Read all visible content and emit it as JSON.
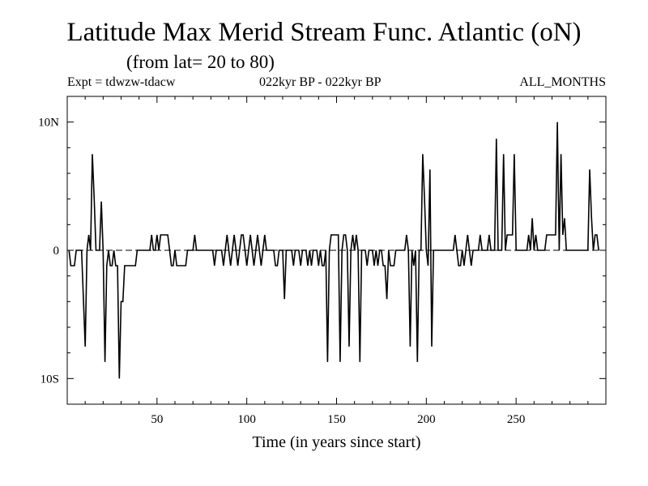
{
  "chart_data": {
    "type": "line",
    "title": "Latitude Max Merid Stream Func. Atlantic (oN)",
    "subtitle": "(from lat= 20 to 80)",
    "experiment": "Expt = tdwzw-tdacw",
    "period": "022kyr BP - 022kyr BP",
    "months": "ALL_MONTHS",
    "xlabel": "Time (in years since start)",
    "ylabel": "",
    "xlim": [
      0,
      300
    ],
    "ylim": [
      -12,
      12
    ],
    "x_ticks": [
      50,
      100,
      150,
      200,
      250
    ],
    "y_ticks": [
      {
        "value": 10,
        "label": "10N"
      },
      {
        "value": 0,
        "label": "0"
      },
      {
        "value": -10,
        "label": "10S"
      }
    ],
    "zero_line": "dashed",
    "series": [
      {
        "color": "#000000",
        "points": [
          [
            1,
            0
          ],
          [
            2,
            -1.2
          ],
          [
            3,
            -1.2
          ],
          [
            4,
            -1.2
          ],
          [
            5,
            0
          ],
          [
            6,
            0
          ],
          [
            8,
            0
          ],
          [
            10,
            -7.5
          ],
          [
            11,
            0
          ],
          [
            12,
            1.2
          ],
          [
            13,
            0
          ],
          [
            14,
            7.5
          ],
          [
            15,
            4
          ],
          [
            16,
            0
          ],
          [
            17,
            0
          ],
          [
            18,
            0
          ],
          [
            19,
            3.8
          ],
          [
            20,
            0
          ],
          [
            21,
            -8.7
          ],
          [
            22,
            -1.2
          ],
          [
            23,
            0
          ],
          [
            24,
            -1.2
          ],
          [
            25,
            -1.2
          ],
          [
            26,
            0
          ],
          [
            27,
            -1.2
          ],
          [
            28,
            -1.2
          ],
          [
            29,
            -10
          ],
          [
            30,
            -4
          ],
          [
            31,
            -4
          ],
          [
            32,
            -1.2
          ],
          [
            33,
            -1.2
          ],
          [
            34,
            -1.2
          ],
          [
            38,
            -1.2
          ],
          [
            39,
            0
          ],
          [
            45,
            0
          ],
          [
            46,
            0
          ],
          [
            47,
            1.2
          ],
          [
            48,
            0
          ],
          [
            49,
            0
          ],
          [
            50,
            1.2
          ],
          [
            51,
            0
          ],
          [
            52,
            1.2
          ],
          [
            56,
            1.2
          ],
          [
            57,
            0
          ],
          [
            58,
            -1.2
          ],
          [
            59,
            -1.2
          ],
          [
            60,
            0
          ],
          [
            61,
            -1.2
          ],
          [
            66,
            -1.2
          ],
          [
            67,
            0
          ],
          [
            70,
            0
          ],
          [
            71,
            1.2
          ],
          [
            72,
            0
          ],
          [
            81,
            0
          ],
          [
            82,
            -1.2
          ],
          [
            83,
            0
          ],
          [
            86,
            0
          ],
          [
            87,
            -1.2
          ],
          [
            88,
            0
          ],
          [
            89,
            1.2
          ],
          [
            90,
            0
          ],
          [
            91,
            -1.2
          ],
          [
            92,
            0
          ],
          [
            93,
            1.2
          ],
          [
            94,
            0
          ],
          [
            95,
            -1.2
          ],
          [
            96,
            0
          ],
          [
            97,
            1.2
          ],
          [
            98,
            1.2
          ],
          [
            99,
            0
          ],
          [
            100,
            -1.2
          ],
          [
            101,
            0
          ],
          [
            102,
            1.2
          ],
          [
            103,
            0
          ],
          [
            104,
            -1.2
          ],
          [
            105,
            0
          ],
          [
            106,
            1.2
          ],
          [
            107,
            0
          ],
          [
            108,
            -1.2
          ],
          [
            109,
            0
          ],
          [
            110,
            1.2
          ],
          [
            111,
            0
          ],
          [
            115,
            0
          ],
          [
            116,
            -1.2
          ],
          [
            117,
            -1.2
          ],
          [
            118,
            0
          ],
          [
            120,
            0
          ],
          [
            121,
            -3.8
          ],
          [
            122,
            0
          ],
          [
            125,
            0
          ],
          [
            126,
            -1.2
          ],
          [
            127,
            0
          ],
          [
            129,
            0
          ],
          [
            130,
            -1.2
          ],
          [
            131,
            0
          ],
          [
            133,
            0
          ],
          [
            134,
            -1.2
          ],
          [
            135,
            0
          ],
          [
            136,
            -1.2
          ],
          [
            137,
            0
          ],
          [
            139,
            0
          ],
          [
            140,
            -1.2
          ],
          [
            141,
            0
          ],
          [
            142,
            -1.2
          ],
          [
            143,
            -1.2
          ],
          [
            144,
            0
          ],
          [
            145,
            -8.7
          ],
          [
            146,
            0
          ],
          [
            147,
            1.2
          ],
          [
            151,
            1.2
          ],
          [
            152,
            -8.7
          ],
          [
            153,
            0
          ],
          [
            154,
            1.2
          ],
          [
            155,
            1.2
          ],
          [
            156,
            0
          ],
          [
            157,
            -7.5
          ],
          [
            158,
            0
          ],
          [
            159,
            1.2
          ],
          [
            160,
            0
          ],
          [
            161,
            1.2
          ],
          [
            162,
            0
          ],
          [
            163,
            -8.7
          ],
          [
            164,
            0
          ],
          [
            166,
            0
          ],
          [
            167,
            -1.2
          ],
          [
            168,
            0
          ],
          [
            170,
            0
          ],
          [
            171,
            -1.2
          ],
          [
            172,
            0
          ],
          [
            173,
            -1.2
          ],
          [
            174,
            0
          ],
          [
            175,
            0
          ],
          [
            176,
            -1.2
          ],
          [
            177,
            -1.2
          ],
          [
            178,
            -3.8
          ],
          [
            179,
            0
          ],
          [
            180,
            -1.2
          ],
          [
            182,
            -1.2
          ],
          [
            183,
            0
          ],
          [
            188,
            0
          ],
          [
            189,
            1.2
          ],
          [
            190,
            0
          ],
          [
            191,
            -7.5
          ],
          [
            192,
            0
          ],
          [
            193,
            -1.2
          ],
          [
            194,
            0
          ],
          [
            195,
            -8.7
          ],
          [
            196,
            0
          ],
          [
            197,
            0
          ],
          [
            198,
            7.5
          ],
          [
            199,
            4
          ],
          [
            200,
            0
          ],
          [
            201,
            -1.2
          ],
          [
            202,
            6.3
          ],
          [
            203,
            -7.5
          ],
          [
            204,
            0
          ],
          [
            215,
            0
          ],
          [
            216,
            1.2
          ],
          [
            217,
            0
          ],
          [
            218,
            -1.2
          ],
          [
            219,
            -1.2
          ],
          [
            220,
            0
          ],
          [
            221,
            -1.2
          ],
          [
            222,
            0
          ],
          [
            223,
            1.2
          ],
          [
            224,
            0
          ],
          [
            225,
            -1.2
          ],
          [
            226,
            0
          ],
          [
            229,
            0
          ],
          [
            230,
            1.2
          ],
          [
            231,
            0
          ],
          [
            234,
            0
          ],
          [
            235,
            1.2
          ],
          [
            236,
            0
          ],
          [
            238,
            0
          ],
          [
            239,
            8.7
          ],
          [
            240,
            0
          ],
          [
            242,
            0
          ],
          [
            243,
            7.5
          ],
          [
            244,
            0
          ],
          [
            245,
            1.2
          ],
          [
            248,
            1.2
          ],
          [
            249,
            7.5
          ],
          [
            250,
            0
          ],
          [
            256,
            0
          ],
          [
            257,
            1.2
          ],
          [
            258,
            0
          ],
          [
            259,
            2.5
          ],
          [
            260,
            0
          ],
          [
            261,
            1.2
          ],
          [
            262,
            0
          ],
          [
            266,
            0
          ],
          [
            267,
            1.2
          ],
          [
            272,
            1.2
          ],
          [
            273,
            10
          ],
          [
            274,
            0
          ],
          [
            275,
            7.5
          ],
          [
            276,
            1.2
          ],
          [
            277,
            2.5
          ],
          [
            278,
            0
          ],
          [
            290,
            0
          ],
          [
            291,
            6.3
          ],
          [
            292,
            2.5
          ],
          [
            293,
            0
          ],
          [
            294,
            1.2
          ],
          [
            295,
            1.2
          ],
          [
            296,
            0
          ]
        ]
      }
    ]
  }
}
